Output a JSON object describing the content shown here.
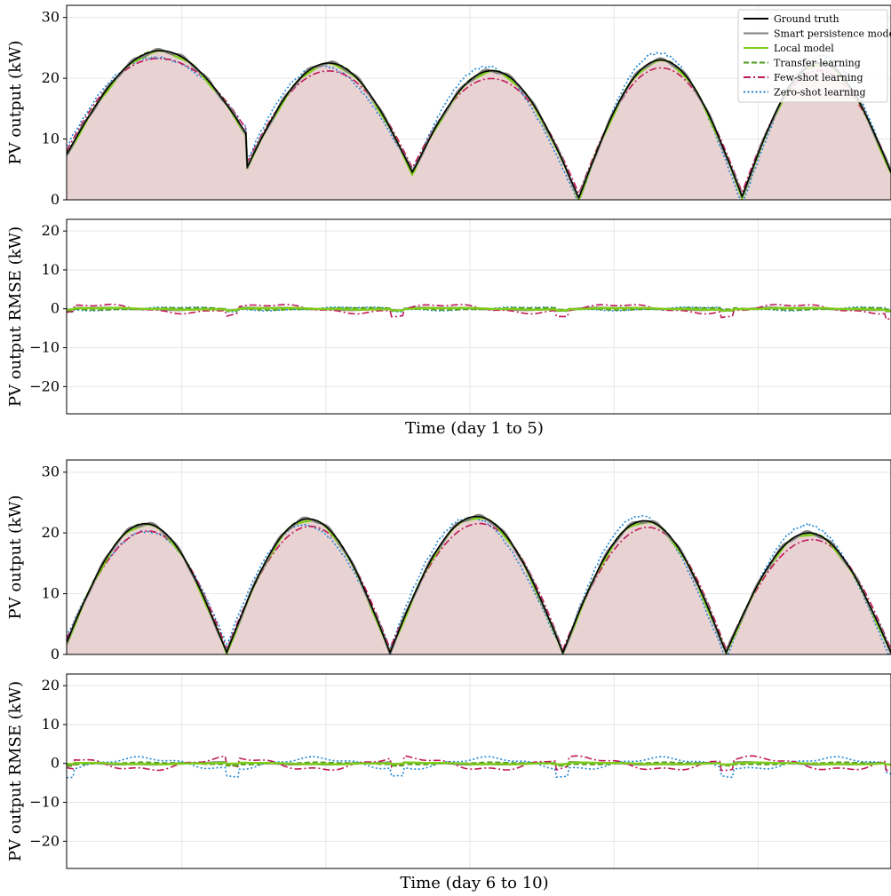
{
  "colors": {
    "ground_truth": "#000000",
    "smart_persistence": "#7f7f7f",
    "local": "#7fcc1a",
    "transfer": "#4c9a1a",
    "few_shot": "#c0185a",
    "zero_shot": "#1f86d6",
    "fill": "#e8d2d2",
    "grid": "#e6e6e6",
    "few_shot_alt": "#7b3fa0"
  },
  "chart_data": [
    {
      "type": "line",
      "panel": "output",
      "ylabel": "PV output (kW)",
      "xlabel": "",
      "ylim": [
        0,
        32
      ],
      "xlim": [
        0,
        5.15
      ],
      "yticks": [
        "0",
        "10",
        "20",
        "30"
      ],
      "grid": true,
      "legend_position": "top-right",
      "legend": [
        {
          "name": "Ground truth",
          "style": "solid",
          "key": "ground_truth"
        },
        {
          "name": "Smart persistence model",
          "style": "solid",
          "key": "smart_persistence"
        },
        {
          "name": "Local model",
          "style": "solid",
          "key": "local"
        },
        {
          "name": "Transfer learning",
          "style": "dashed",
          "key": "transfer"
        },
        {
          "name": "Few-shot learning",
          "style": "dashdot",
          "key": "few_shot"
        },
        {
          "name": "Zero-shot learning",
          "style": "dotted",
          "key": "zero_shot"
        }
      ],
      "days": [
        {
          "start": 0.0,
          "end": 1.12,
          "peak": 24.5,
          "start_val": 7.5,
          "end_val": 11.0
        },
        {
          "start": 1.12,
          "end": 2.16,
          "peak": 22.5,
          "start_val": 5.0,
          "end_val": 4.5
        },
        {
          "start": 2.16,
          "end": 3.2,
          "peak": 21.2,
          "start_val": 4.5,
          "end_val": 0.3
        },
        {
          "start": 3.2,
          "end": 4.22,
          "peak": 23.0,
          "start_val": 0.3,
          "end_val": 0.5
        },
        {
          "start": 4.22,
          "end": 5.15,
          "peak": 22.5,
          "start_val": 0.5,
          "end_val": 4.5
        }
      ]
    },
    {
      "type": "line",
      "panel": "rmse",
      "ylabel": "PV output RMSE (kW)",
      "xlabel": "Time (day 1 to 5)",
      "ylim": [
        -27,
        23
      ],
      "xlim": [
        0,
        5.15
      ],
      "yticks": [
        "−20",
        "−10",
        "0",
        "10",
        "20"
      ],
      "grid": true,
      "bias": {
        "few_shot": 0.8,
        "zero_shot": 0.3
      }
    },
    {
      "type": "line",
      "panel": "output",
      "ylabel": "PV output (kW)",
      "xlabel": "",
      "ylim": [
        0,
        32
      ],
      "xlim": [
        0,
        5.15
      ],
      "yticks": [
        "0",
        "10",
        "20",
        "30"
      ],
      "grid": true,
      "days": [
        {
          "start": 0.0,
          "end": 1.0,
          "peak": 21.5,
          "start_val": 2.0,
          "end_val": 0.3
        },
        {
          "start": 1.0,
          "end": 2.02,
          "peak": 22.3,
          "start_val": 0.3,
          "end_val": 0.3
        },
        {
          "start": 2.02,
          "end": 3.1,
          "peak": 22.7,
          "start_val": 0.3,
          "end_val": 0.3
        },
        {
          "start": 3.1,
          "end": 4.12,
          "peak": 22.0,
          "start_val": 0.3,
          "end_val": 0.3
        },
        {
          "start": 4.12,
          "end": 5.15,
          "peak": 20.0,
          "start_val": 0.3,
          "end_val": 0.3
        }
      ]
    },
    {
      "type": "line",
      "panel": "rmse",
      "ylabel": "PV output RMSE (kW)",
      "xlabel": "Time (day 6 to 10)",
      "ylim": [
        -27,
        23
      ],
      "xlim": [
        0,
        5.15
      ],
      "yticks": [
        "−20",
        "−10",
        "0",
        "10",
        "20"
      ],
      "grid": true,
      "bias": {
        "few_shot": 1.2,
        "zero_shot": 1.0
      }
    }
  ]
}
